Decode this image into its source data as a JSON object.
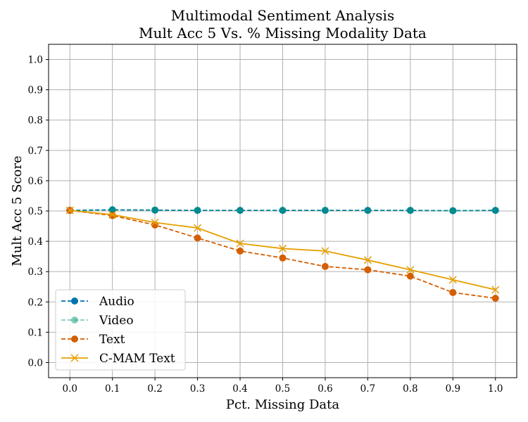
{
  "chart_data": {
    "type": "line",
    "title_line1": "Multimodal Sentiment Analysis",
    "title_line2": "Mult Acc 5 Vs. % Missing Modality Data",
    "xlabel": "Pct. Missing Data",
    "ylabel": "Mult Acc 5 Score",
    "x": [
      0.0,
      0.1,
      0.2,
      0.3,
      0.4,
      0.5,
      0.6,
      0.7,
      0.8,
      0.9,
      1.0
    ],
    "x_tick_labels": [
      "0.0",
      "0.1",
      "0.2",
      "0.3",
      "0.4",
      "0.5",
      "0.6",
      "0.7",
      "0.8",
      "0.9",
      "1.0"
    ],
    "y_ticks": [
      0.0,
      0.1,
      0.2,
      0.3,
      0.4,
      0.5,
      0.6,
      0.7,
      0.8,
      0.9,
      1.0
    ],
    "y_tick_labels": [
      "0.0",
      "0.1",
      "0.2",
      "0.3",
      "0.4",
      "0.5",
      "0.6",
      "0.7",
      "0.8",
      "0.9",
      "1.0"
    ],
    "xlim": [
      -0.05,
      1.05
    ],
    "ylim": [
      -0.05,
      1.05
    ],
    "grid": true,
    "legend_position": "lower-left",
    "series": [
      {
        "name": "Audio",
        "color": "#0072b2",
        "linestyle": "dashed",
        "marker": "circle",
        "values": [
          0.502,
          0.504,
          0.503,
          0.502,
          0.502,
          0.502,
          0.502,
          0.502,
          0.502,
          0.501,
          0.502
        ]
      },
      {
        "name": "Video",
        "color": "#009e73",
        "linestyle": "dashed",
        "marker": "circle",
        "alpha": 0.5,
        "values": [
          0.502,
          0.504,
          0.503,
          0.502,
          0.502,
          0.502,
          0.502,
          0.502,
          0.502,
          0.501,
          0.502
        ]
      },
      {
        "name": "Text",
        "color": "#d55e00",
        "linestyle": "dashed",
        "marker": "circle",
        "values": [
          0.502,
          0.485,
          0.454,
          0.411,
          0.368,
          0.345,
          0.317,
          0.306,
          0.285,
          0.231,
          0.212
        ]
      },
      {
        "name": "C-MAM Text",
        "color": "#e69f00",
        "linestyle": "solid",
        "marker": "x",
        "values": [
          0.502,
          0.488,
          0.462,
          0.444,
          0.393,
          0.376,
          0.368,
          0.338,
          0.306,
          0.273,
          0.24
        ]
      }
    ]
  }
}
